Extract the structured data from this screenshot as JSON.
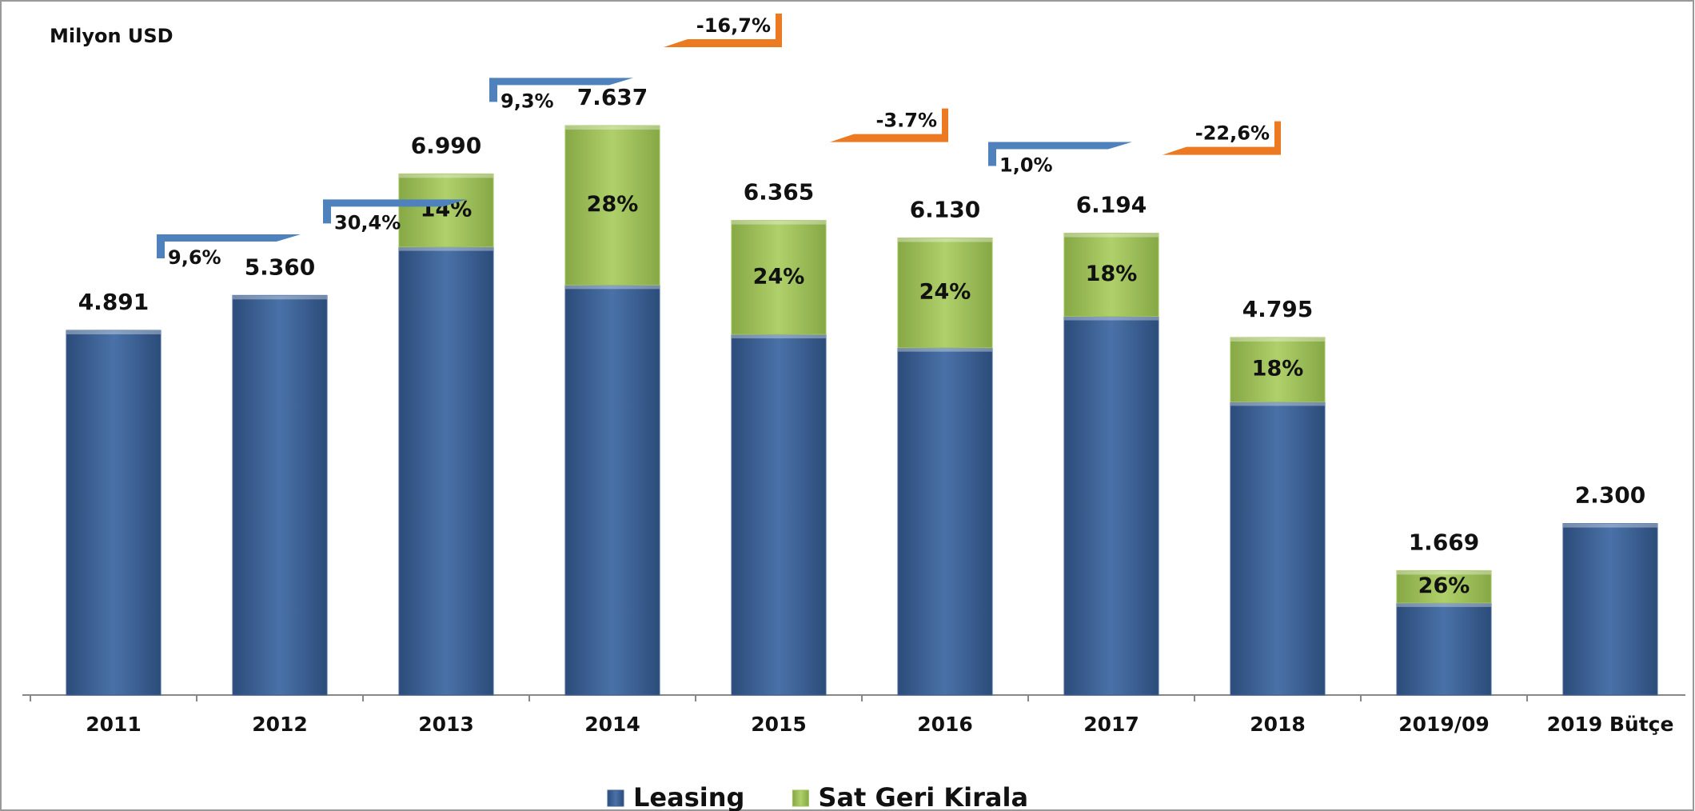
{
  "chart_data": {
    "type": "stacked_bar",
    "unit_label": "Milyon USD",
    "categories": [
      "2011",
      "2012",
      "2013",
      "2014",
      "2015",
      "2016",
      "2017",
      "2018",
      "2019/09",
      "2019 Bütçe"
    ],
    "series": [
      {
        "name": "Leasing",
        "color": "#3d6398",
        "values": [
          4891,
          5360,
          6011,
          5499,
          4837,
          4659,
          5079,
          3932,
          1235,
          2300
        ]
      },
      {
        "name": "Sat Geri Kirala",
        "color": "#9fc25a",
        "values": [
          null,
          null,
          979,
          2138,
          1528,
          1471,
          1115,
          863,
          434,
          null
        ]
      }
    ],
    "totals": {
      "values": [
        4891,
        5360,
        6990,
        7637,
        6365,
        6130,
        6194,
        4795,
        1669,
        2300
      ],
      "value_labels": [
        "4.891",
        "5.360",
        "6.990",
        "7.637",
        "6.365",
        "6.130",
        "6.194",
        "4.795",
        "1.669",
        "2.300"
      ]
    },
    "shares": {
      "values": [
        null,
        null,
        14,
        28,
        24,
        24,
        18,
        18,
        26,
        null
      ],
      "value_labels": [
        null,
        null,
        "14%",
        "28%",
        "24%",
        "24%",
        "18%",
        "18%",
        "26%",
        null
      ]
    },
    "annotations": [
      {
        "text": "9,6%",
        "color": "#4f81bd"
      },
      {
        "text": "30,4%",
        "color": "#4f81bd"
      },
      {
        "text": "9,3%",
        "color": "#4f81bd"
      },
      {
        "text": "-16,7%",
        "color": "#ec7a22"
      },
      {
        "text": "-3.7%",
        "color": "#ec7a22"
      },
      {
        "text": "1,0%",
        "color": "#4f81bd"
      },
      {
        "text": "-22,6%",
        "color": "#ec7a22"
      }
    ],
    "ylim": [
      0,
      9000
    ],
    "legend": "bottom"
  }
}
